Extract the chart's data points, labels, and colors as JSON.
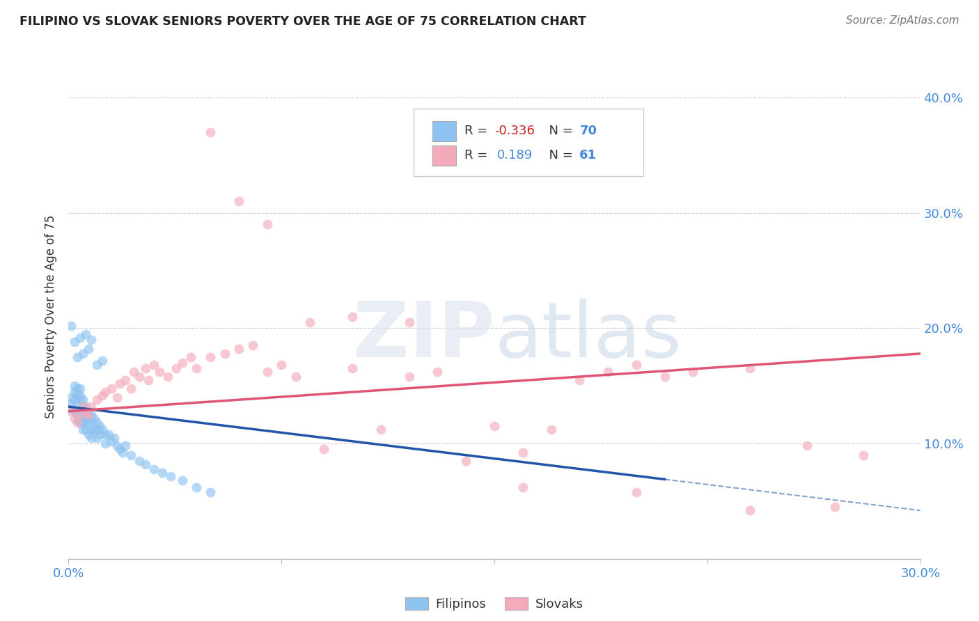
{
  "title": "FILIPINO VS SLOVAK SENIORS POVERTY OVER THE AGE OF 75 CORRELATION CHART",
  "source": "Source: ZipAtlas.com",
  "ylabel": "Seniors Poverty Over the Age of 75",
  "blue_R": "-0.336",
  "blue_N": "70",
  "pink_R": "0.189",
  "pink_N": "61",
  "blue_color": "#8DC3F0",
  "pink_color": "#F4AABB",
  "blue_line_color": "#2255AA",
  "pink_line_color": "#E05575",
  "grid_color": "#CCCCCC",
  "xlim": [
    0.0,
    0.3
  ],
  "ylim": [
    0.0,
    0.42
  ],
  "blue_line_solid_end": 0.21,
  "blue_line_x0": 0.0,
  "blue_line_y0": 0.132,
  "blue_line_x1": 0.3,
  "blue_line_y1": 0.042,
  "pink_line_x0": 0.0,
  "pink_line_y0": 0.128,
  "pink_line_x1": 0.3,
  "pink_line_y1": 0.178,
  "blue_x": [
    0.001,
    0.001,
    0.001,
    0.002,
    0.002,
    0.002,
    0.002,
    0.003,
    0.003,
    0.003,
    0.003,
    0.003,
    0.004,
    0.004,
    0.004,
    0.004,
    0.004,
    0.005,
    0.005,
    0.005,
    0.005,
    0.005,
    0.006,
    0.006,
    0.006,
    0.006,
    0.007,
    0.007,
    0.007,
    0.007,
    0.008,
    0.008,
    0.008,
    0.008,
    0.009,
    0.009,
    0.01,
    0.01,
    0.01,
    0.011,
    0.011,
    0.012,
    0.013,
    0.013,
    0.014,
    0.015,
    0.016,
    0.017,
    0.018,
    0.019,
    0.02,
    0.022,
    0.025,
    0.027,
    0.03,
    0.033,
    0.036,
    0.04,
    0.045,
    0.05,
    0.001,
    0.002,
    0.003,
    0.004,
    0.005,
    0.006,
    0.007,
    0.008,
    0.01,
    0.012
  ],
  "blue_y": [
    0.135,
    0.14,
    0.13,
    0.15,
    0.145,
    0.138,
    0.128,
    0.143,
    0.148,
    0.135,
    0.125,
    0.12,
    0.142,
    0.148,
    0.138,
    0.125,
    0.118,
    0.138,
    0.132,
    0.125,
    0.118,
    0.112,
    0.132,
    0.128,
    0.12,
    0.112,
    0.128,
    0.125,
    0.118,
    0.108,
    0.125,
    0.12,
    0.112,
    0.105,
    0.122,
    0.112,
    0.118,
    0.112,
    0.105,
    0.115,
    0.108,
    0.112,
    0.108,
    0.1,
    0.108,
    0.102,
    0.105,
    0.098,
    0.095,
    0.092,
    0.098,
    0.09,
    0.085,
    0.082,
    0.078,
    0.075,
    0.072,
    0.068,
    0.062,
    0.058,
    0.202,
    0.188,
    0.175,
    0.192,
    0.178,
    0.195,
    0.182,
    0.19,
    0.168,
    0.172
  ],
  "pink_x": [
    0.001,
    0.002,
    0.003,
    0.004,
    0.005,
    0.006,
    0.007,
    0.008,
    0.01,
    0.012,
    0.013,
    0.015,
    0.017,
    0.018,
    0.02,
    0.022,
    0.023,
    0.025,
    0.027,
    0.028,
    0.03,
    0.032,
    0.035,
    0.038,
    0.04,
    0.043,
    0.045,
    0.05,
    0.055,
    0.06,
    0.065,
    0.07,
    0.075,
    0.08,
    0.09,
    0.1,
    0.11,
    0.12,
    0.13,
    0.14,
    0.15,
    0.16,
    0.17,
    0.18,
    0.19,
    0.2,
    0.21,
    0.22,
    0.24,
    0.26,
    0.28,
    0.05,
    0.06,
    0.07,
    0.085,
    0.1,
    0.12,
    0.16,
    0.2,
    0.24,
    0.27
  ],
  "pink_y": [
    0.128,
    0.122,
    0.118,
    0.125,
    0.132,
    0.128,
    0.125,
    0.132,
    0.138,
    0.142,
    0.145,
    0.148,
    0.14,
    0.152,
    0.155,
    0.148,
    0.162,
    0.158,
    0.165,
    0.155,
    0.168,
    0.162,
    0.158,
    0.165,
    0.17,
    0.175,
    0.165,
    0.175,
    0.178,
    0.182,
    0.185,
    0.162,
    0.168,
    0.158,
    0.095,
    0.165,
    0.112,
    0.158,
    0.162,
    0.085,
    0.115,
    0.092,
    0.112,
    0.155,
    0.162,
    0.168,
    0.158,
    0.162,
    0.165,
    0.098,
    0.09,
    0.37,
    0.31,
    0.29,
    0.205,
    0.21,
    0.205,
    0.062,
    0.058,
    0.042,
    0.045
  ]
}
